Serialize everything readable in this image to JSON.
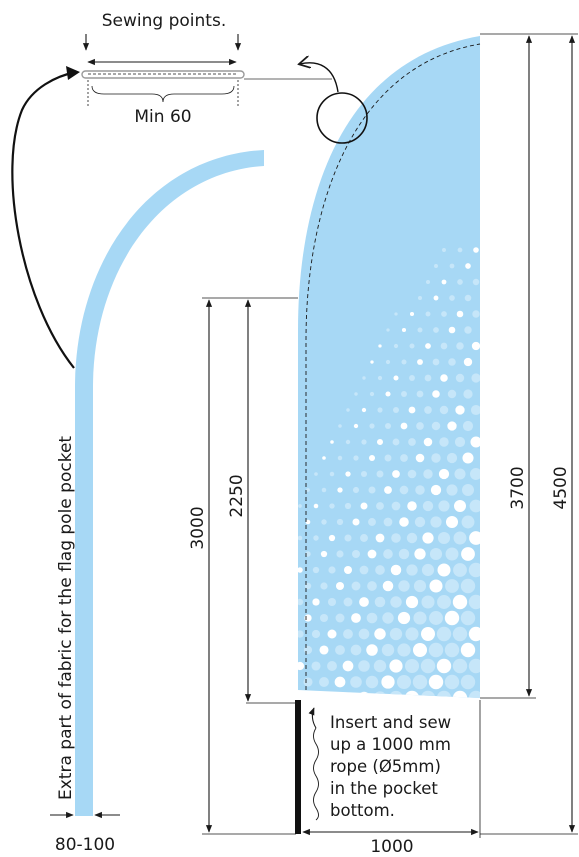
{
  "labels": {
    "sewing_points": "Sewing points.",
    "min": "Min 60",
    "extra_fabric": "Extra part of fabric for the flag pole pocket",
    "width_range": "80-100",
    "width": "1000",
    "height_3000": "3000",
    "height_2250": "2250",
    "height_3700": "3700",
    "height_4500": "4500",
    "rope_note": [
      "Insert and sew",
      "up a 1000 mm",
      "rope (Ø5mm)",
      "in the pocket",
      "bottom."
    ]
  },
  "colors": {
    "flag_fill": "#a7d8f5",
    "dots_light": "#c6e6f9",
    "dots_white": "#ffffff",
    "line": "#1a1a1a",
    "pole": "#111111"
  }
}
